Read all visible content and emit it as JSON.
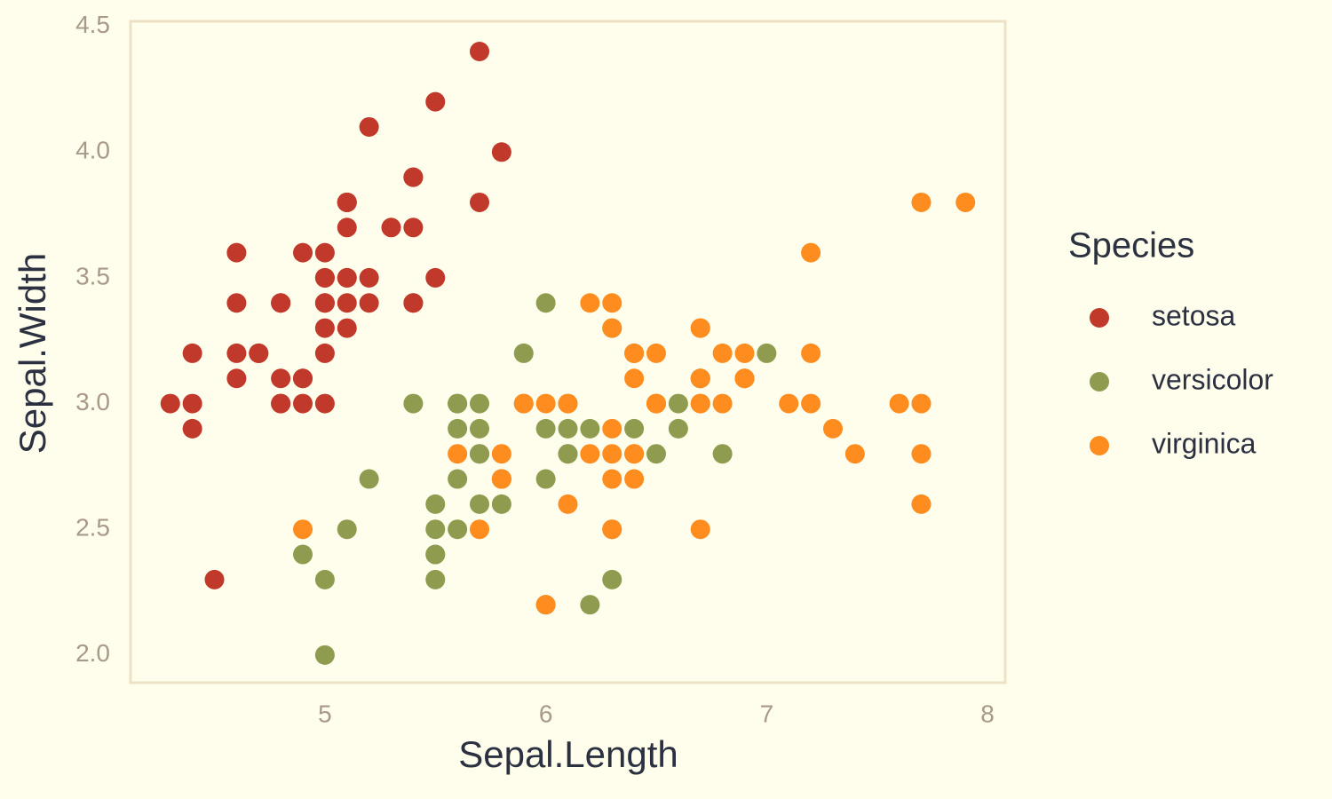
{
  "chart_data": {
    "type": "scatter",
    "x_label": "Sepal.Length",
    "y_label": "Sepal.Width",
    "legend_title": "Species",
    "legend_position": "right",
    "grid": false,
    "xlim": [
      4.12,
      8.08
    ],
    "ylim": [
      1.89,
      4.52
    ],
    "xticks": [
      5,
      6,
      7,
      8
    ],
    "yticks": [
      {
        "value": 2,
        "label": "2.0"
      },
      2.5,
      {
        "value": 3,
        "label": "3.0"
      },
      3.5,
      {
        "value": 4,
        "label": "4.0"
      },
      4.5
    ],
    "series": [
      {
        "name": "setosa",
        "color": "#c0392b",
        "x": [
          5.1,
          4.9,
          4.7,
          4.6,
          5.0,
          5.4,
          4.6,
          5.0,
          4.4,
          4.9,
          5.4,
          4.8,
          4.8,
          4.3,
          5.8,
          5.7,
          5.4,
          5.1,
          5.7,
          5.1,
          5.4,
          5.1,
          4.6,
          5.1,
          4.8,
          5.0,
          5.0,
          5.2,
          5.2,
          4.7,
          4.8,
          5.4,
          5.2,
          5.5,
          4.9,
          5.0,
          5.5,
          4.9,
          4.4,
          5.1,
          5.0,
          4.5,
          4.4,
          5.0,
          5.1,
          4.8,
          5.1,
          4.6,
          5.3,
          5.0
        ],
        "values": [
          3.5,
          3.0,
          3.2,
          3.1,
          3.6,
          3.9,
          3.4,
          3.4,
          2.9,
          3.1,
          3.7,
          3.4,
          3.0,
          3.0,
          4.0,
          4.4,
          3.9,
          3.5,
          3.8,
          3.8,
          3.4,
          3.7,
          3.6,
          3.3,
          3.4,
          3.0,
          3.4,
          3.5,
          3.4,
          3.2,
          3.1,
          3.4,
          4.1,
          4.2,
          3.1,
          3.2,
          3.5,
          3.6,
          3.0,
          3.4,
          3.5,
          2.3,
          3.2,
          3.5,
          3.8,
          3.0,
          3.8,
          3.2,
          3.7,
          3.3
        ]
      },
      {
        "name": "versicolor",
        "color": "#8f9c4f",
        "x": [
          7.0,
          6.4,
          6.9,
          5.5,
          6.5,
          5.7,
          6.3,
          4.9,
          6.6,
          5.2,
          5.0,
          5.9,
          6.0,
          6.1,
          5.6,
          6.7,
          5.6,
          5.8,
          6.2,
          5.6,
          5.9,
          6.1,
          6.3,
          6.1,
          6.4,
          6.6,
          6.8,
          6.7,
          6.0,
          5.7,
          5.5,
          5.5,
          5.8,
          6.0,
          5.4,
          6.0,
          6.7,
          6.3,
          5.6,
          5.5,
          5.5,
          6.1,
          5.8,
          5.0,
          5.6,
          5.7,
          5.7,
          6.2,
          5.1,
          5.7
        ],
        "values": [
          3.2,
          3.2,
          3.1,
          2.3,
          2.8,
          2.8,
          3.3,
          2.4,
          2.9,
          2.7,
          2.0,
          3.0,
          2.2,
          2.9,
          2.9,
          3.1,
          3.0,
          2.7,
          2.2,
          2.5,
          3.2,
          2.8,
          2.5,
          2.8,
          2.9,
          3.0,
          2.8,
          3.0,
          2.9,
          2.6,
          2.4,
          2.4,
          2.7,
          2.7,
          3.0,
          3.4,
          3.1,
          2.3,
          3.0,
          2.5,
          2.6,
          3.0,
          2.6,
          2.3,
          2.7,
          3.0,
          2.9,
          2.9,
          2.5,
          2.8
        ]
      },
      {
        "name": "virginica",
        "color": "#ff8c1f",
        "x": [
          6.3,
          5.8,
          7.1,
          6.3,
          6.5,
          7.6,
          4.9,
          7.3,
          6.7,
          7.2,
          6.5,
          6.4,
          6.8,
          5.7,
          5.8,
          6.4,
          6.5,
          7.7,
          7.7,
          6.0,
          6.9,
          5.6,
          7.7,
          6.3,
          6.7,
          7.2,
          6.2,
          6.1,
          6.4,
          7.2,
          7.4,
          7.9,
          6.4,
          6.3,
          6.1,
          7.7,
          6.3,
          6.4,
          6.0,
          6.9,
          6.7,
          6.9,
          5.8,
          6.8,
          6.7,
          6.7,
          6.3,
          6.5,
          6.2,
          5.9
        ],
        "values": [
          3.3,
          2.7,
          3.0,
          2.9,
          3.0,
          3.0,
          2.5,
          2.9,
          2.5,
          3.6,
          3.2,
          2.7,
          3.0,
          2.5,
          2.8,
          3.2,
          3.0,
          3.8,
          2.6,
          2.2,
          3.2,
          2.8,
          2.8,
          2.7,
          3.3,
          3.2,
          2.8,
          3.0,
          2.8,
          3.0,
          2.8,
          3.8,
          2.8,
          2.8,
          2.6,
          3.0,
          3.4,
          3.1,
          3.0,
          3.1,
          3.1,
          3.1,
          2.7,
          3.2,
          3.3,
          3.0,
          2.5,
          3.0,
          3.4,
          3.0
        ]
      }
    ]
  }
}
